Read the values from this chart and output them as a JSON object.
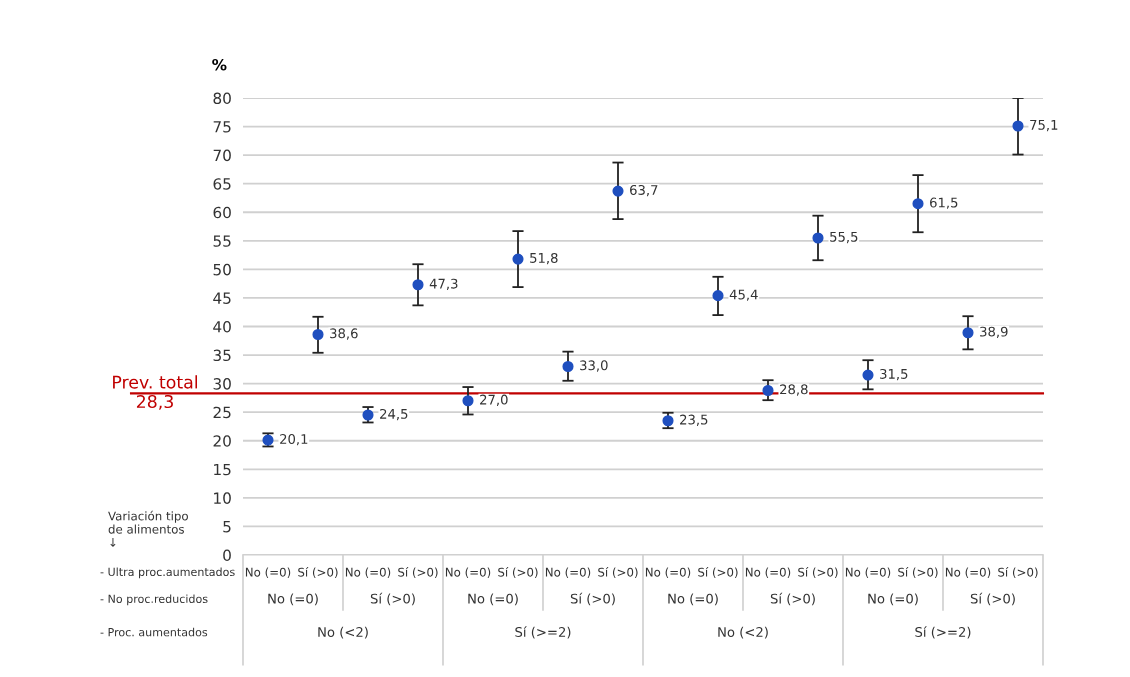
{
  "chart_data": {
    "type": "scatter",
    "ylabel": "%",
    "categories": [
      "No (=0)",
      "Sí (>0)",
      "No (=0)",
      "Sí (>0)",
      "No (=0)",
      "Sí (>0)",
      "No (=0)",
      "Sí (>0)",
      "No (=0)",
      "Sí (>0)",
      "No (=0)",
      "Sí (>0)",
      "No (=0)",
      "Sí (>0)",
      "No (=0)",
      "Sí (>0)"
    ],
    "series": [
      {
        "color": "#1f4fbf",
        "values": [
          20.1,
          38.6,
          24.5,
          47.3,
          27.0,
          51.8,
          33.0,
          63.7,
          23.5,
          45.4,
          28.8,
          55.5,
          31.5,
          61.5,
          38.9,
          75.1
        ],
        "errors": [
          [
            19.0,
            21.3
          ],
          [
            35.4,
            41.7
          ],
          [
            23.2,
            25.9
          ],
          [
            43.7,
            50.9
          ],
          [
            24.6,
            29.4
          ],
          [
            46.9,
            56.7
          ],
          [
            30.5,
            35.6
          ],
          [
            58.8,
            68.7
          ],
          [
            22.2,
            24.9
          ],
          [
            42.0,
            48.7
          ],
          [
            27.1,
            30.6
          ],
          [
            51.6,
            59.4
          ],
          [
            29.0,
            34.1
          ],
          [
            56.5,
            66.5
          ],
          [
            36.0,
            41.8
          ],
          [
            70.1,
            80.0
          ]
        ],
        "value_labels": [
          "20,1",
          "38,6",
          "24,5",
          "47,3",
          "27,0",
          "51,8",
          "33,0",
          "63,7",
          "23,5",
          "45,4",
          "28,8",
          "55,5",
          "31,5",
          "61,5",
          "38,9",
          "75,1"
        ]
      }
    ],
    "marker": "circle",
    "ylim": [
      0,
      80
    ],
    "yticks": [
      0,
      5,
      10,
      15,
      20,
      25,
      30,
      35,
      40,
      45,
      50,
      55,
      60,
      65,
      70,
      75,
      80
    ],
    "grid": "y",
    "ref_lines": [
      {
        "axis": "y",
        "value": 28.3,
        "label": "Prev. total\n28,3",
        "color": "#c00000"
      }
    ],
    "annotations": [
      "Variación tipo\nde alimentos\n↓",
      "- Ultra proc.aumentados",
      "- No proc.reducidos",
      "- Proc. aumentados",
      "No (=0)",
      "Sí (>0)",
      "No (=0)",
      "Sí (>0)",
      "No (=0)",
      "Sí (>0)",
      "No (=0)",
      "Sí (>0)",
      "No (<2)",
      "Sí (>=2)",
      "No (<2)",
      "Sí (>=2)"
    ]
  }
}
